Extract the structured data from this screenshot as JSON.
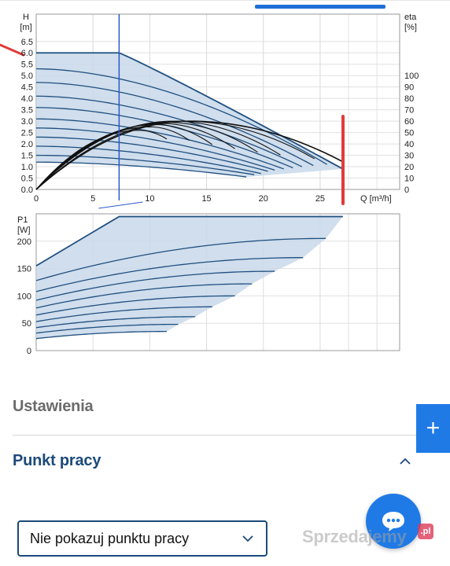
{
  "ui": {
    "settings_heading": "Ustawienia",
    "working_point_heading": "Punkt pracy",
    "working_point_select_value": "Nie pokazuj punktu pracy",
    "watermark_text": "Sprzedajemy",
    "watermark_badge": ".pl",
    "plus_icon": "plus-icon",
    "chat_icon": "chat-bubble-icon",
    "accent_color": "#1f7ae6",
    "heading_color": "#1b4a7a"
  },
  "chart_data": [
    {
      "type": "line",
      "ylabel_line1": "H",
      "ylabel_line2": "[m]",
      "y2label_line1": "eta",
      "y2label_line2": "[%]",
      "xlabel": "Q [m³/h]",
      "x_ticks": [
        0,
        5,
        10,
        15,
        20,
        25
      ],
      "y_ticks": [
        0.0,
        0.5,
        1.0,
        1.5,
        2.0,
        2.5,
        3.0,
        3.5,
        4.0,
        4.5,
        5.0,
        5.5,
        6.0,
        6.5
      ],
      "y2_ticks": [
        0,
        10,
        20,
        30,
        40,
        50,
        60,
        70,
        80,
        90,
        100
      ],
      "xlim": [
        0,
        32
      ],
      "ylim": [
        0,
        7.7
      ],
      "y2lim": [
        0,
        100
      ],
      "y2_axis_anchor_h": [
        0,
        5.0
      ],
      "marker_q": 7.3,
      "envelope": {
        "max_h": 6.0,
        "max_flow_q_at_max_h": 7.3,
        "end_q": 27.0,
        "end_h": 0.9,
        "min_curve_end_q": 18.5,
        "min_curve_end_h": 0.55
      },
      "head_curves": [
        {
          "h0": 6.0,
          "q_end": 27.0,
          "h_end": 0.9
        },
        {
          "h0": 5.3,
          "q_end": 25.6,
          "h_end": 1.1
        },
        {
          "h0": 4.7,
          "q_end": 24.4,
          "h_end": 1.05
        },
        {
          "h0": 4.1,
          "q_end": 23.4,
          "h_end": 1.0
        },
        {
          "h0": 3.6,
          "q_end": 22.6,
          "h_end": 0.95
        },
        {
          "h0": 3.1,
          "q_end": 21.8,
          "h_end": 0.9
        },
        {
          "h0": 2.7,
          "q_end": 21.0,
          "h_end": 0.85
        },
        {
          "h0": 2.3,
          "q_end": 20.4,
          "h_end": 0.8
        },
        {
          "h0": 1.9,
          "q_end": 19.8,
          "h_end": 0.7
        },
        {
          "h0": 1.5,
          "q_end": 19.2,
          "h_end": 0.65
        },
        {
          "h0": 1.2,
          "q_end": 18.5,
          "h_end": 0.55
        }
      ],
      "efficiency_curves": [
        {
          "q_end": 27.0,
          "peak": 60,
          "peak_q": 13.5
        },
        {
          "q_end": 24.5,
          "peak": 60,
          "peak_q": 13.0
        },
        {
          "q_end": 21.5,
          "peak": 60,
          "peak_q": 12.0
        },
        {
          "q_end": 19.5,
          "peak": 59,
          "peak_q": 11.5
        },
        {
          "q_end": 17.5,
          "peak": 58,
          "peak_q": 11.0
        },
        {
          "q_end": 15.5,
          "peak": 57,
          "peak_q": 10.5
        },
        {
          "q_end": 13.5,
          "peak": 55,
          "peak_q": 10.0
        },
        {
          "q_end": 11.5,
          "peak": 52,
          "peak_q": 9.0
        }
      ]
    },
    {
      "type": "line",
      "ylabel_line1": "P1",
      "ylabel_line2": "[W]",
      "y_ticks": [
        0,
        50,
        100,
        150,
        200
      ],
      "xlim": [
        0,
        32
      ],
      "ylim": [
        0,
        250
      ],
      "power_curves": [
        {
          "p0": 155,
          "p_end": 245,
          "q_end": 27.0
        },
        {
          "p0": 128,
          "p_end": 205,
          "q_end": 25.5
        },
        {
          "p0": 108,
          "p_end": 170,
          "q_end": 23.5
        },
        {
          "p0": 92,
          "p_end": 145,
          "q_end": 21.0
        },
        {
          "p0": 78,
          "p_end": 122,
          "q_end": 19.0
        },
        {
          "p0": 65,
          "p_end": 100,
          "q_end": 17.5
        },
        {
          "p0": 53,
          "p_end": 80,
          "q_end": 15.5
        },
        {
          "p0": 42,
          "p_end": 62,
          "q_end": 14.0
        },
        {
          "p0": 32,
          "p_end": 48,
          "q_end": 12.5
        },
        {
          "p0": 22,
          "p_end": 35,
          "q_end": 11.5
        }
      ],
      "max_power": 245,
      "max_power_start_q": 7.3
    }
  ]
}
